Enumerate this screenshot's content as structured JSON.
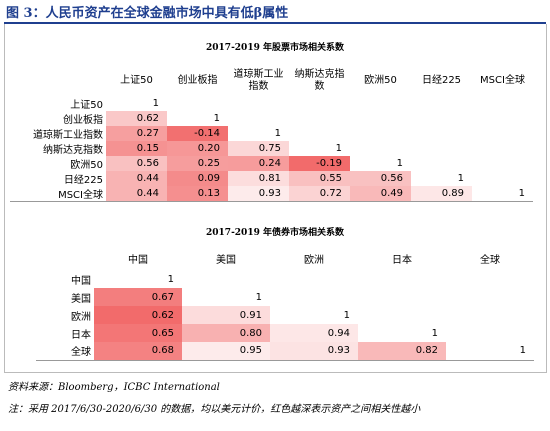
{
  "header": {
    "title": "图 3：人民币资产在全球金融市场中具有低β属性"
  },
  "table1": {
    "title": "2017-2019 年股票市场相关系数",
    "columns": [
      "上证50",
      "创业板指",
      "道琼斯工业指数",
      "纳斯达克指数",
      "欧洲50",
      "日经225",
      "MSCI全球"
    ],
    "rows": [
      {
        "label": "上证50",
        "cells": [
          "1"
        ]
      },
      {
        "label": "创业板指",
        "cells": [
          "0.62",
          "1"
        ]
      },
      {
        "label": "道琼斯工业指数",
        "cells": [
          "0.27",
          "-0.14",
          "1"
        ]
      },
      {
        "label": "纳斯达克指数",
        "cells": [
          "0.15",
          "0.20",
          "0.75",
          "1"
        ]
      },
      {
        "label": "欧洲50",
        "cells": [
          "0.56",
          "0.25",
          "0.24",
          "-0.19",
          "1"
        ]
      },
      {
        "label": "日经225",
        "cells": [
          "0.44",
          "0.09",
          "0.81",
          "0.55",
          "0.56",
          "1"
        ]
      },
      {
        "label": "MSCI全球",
        "cells": [
          "0.44",
          "0.13",
          "0.93",
          "0.72",
          "0.49",
          "0.89",
          "1"
        ]
      }
    ]
  },
  "table2": {
    "title": "2017-2019 年债券市场相关系数",
    "columns": [
      "中国",
      "美国",
      "欧洲",
      "日本",
      "全球"
    ],
    "rows": [
      {
        "label": "中国",
        "cells": [
          "1"
        ]
      },
      {
        "label": "美国",
        "cells": [
          "0.67",
          "1"
        ]
      },
      {
        "label": "欧洲",
        "cells": [
          "0.62",
          "0.91",
          "1"
        ]
      },
      {
        "label": "日本",
        "cells": [
          "0.65",
          "0.80",
          "0.94",
          "1"
        ]
      },
      {
        "label": "全球",
        "cells": [
          "0.68",
          "0.95",
          "0.93",
          "0.82",
          "1"
        ]
      }
    ]
  },
  "footer": {
    "source": "资料来源：Bloomberg，ICBC International",
    "note": "注：采用 2017/6/30-2020/6/30 的数据，均以美元计价，红色越深表示资产之间相关性越小"
  }
}
